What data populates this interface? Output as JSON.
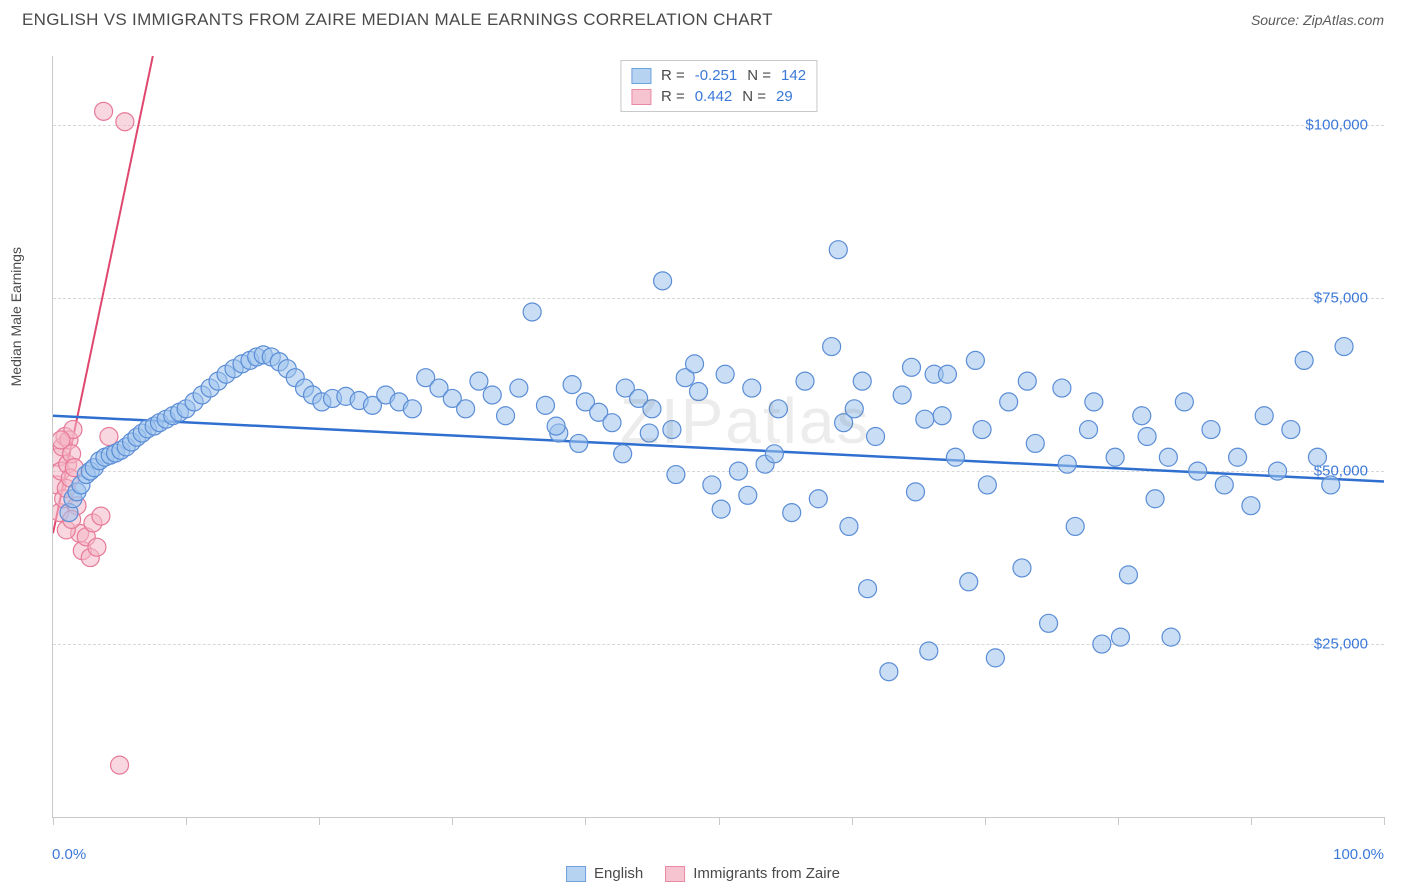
{
  "header": {
    "title": "ENGLISH VS IMMIGRANTS FROM ZAIRE MEDIAN MALE EARNINGS CORRELATION CHART",
    "source": "Source: ZipAtlas.com"
  },
  "watermark": "ZIPatlas",
  "chart": {
    "type": "scatter",
    "y_axis_label": "Median Male Earnings",
    "x_axis": {
      "min_label": "0.0%",
      "max_label": "100.0%",
      "xlim": [
        0,
        100
      ],
      "tick_positions": [
        0,
        10,
        20,
        30,
        40,
        50,
        60,
        70,
        80,
        90,
        100
      ]
    },
    "y_axis": {
      "ylim": [
        0,
        110000
      ],
      "ticks": [
        {
          "value": 25000,
          "label": "$25,000"
        },
        {
          "value": 50000,
          "label": "$50,000"
        },
        {
          "value": 75000,
          "label": "$75,000"
        },
        {
          "value": 100000,
          "label": "$100,000"
        }
      ]
    },
    "grid_color": "#d7d7d7",
    "axis_color": "#c9c9c9",
    "background_color": "#ffffff",
    "legend_top": [
      {
        "swatch_fill": "#b7d3f2",
        "swatch_border": "#6fa1dd",
        "r_label": "R =",
        "r_value": "-0.251",
        "n_label": "N =",
        "n_value": "142"
      },
      {
        "swatch_fill": "#f6c3d0",
        "swatch_border": "#e98aa4",
        "r_label": "R =",
        "r_value": "0.442",
        "n_label": "N =",
        "n_value": "29"
      }
    ],
    "legend_bottom": [
      {
        "swatch_fill": "#b7d3f2",
        "swatch_border": "#6fa1dd",
        "label": "English"
      },
      {
        "swatch_fill": "#f6c3d0",
        "swatch_border": "#e98aa4",
        "label": "Immigrants from Zaire"
      }
    ],
    "marker_radius": 9,
    "marker_stroke_width": 1.2,
    "marker_fill_opacity": 0.55,
    "series": [
      {
        "name": "English",
        "fill": "#9cc2ed",
        "stroke": "#5b8dd6",
        "trend": {
          "x1": 0,
          "y1": 58000,
          "x2": 100,
          "y2": 48500,
          "color": "#2f6fd0",
          "width": 2.5,
          "dash": "none"
        },
        "points": [
          [
            1.2,
            44000
          ],
          [
            1.5,
            46000
          ],
          [
            1.8,
            47000
          ],
          [
            2.1,
            48000
          ],
          [
            2.5,
            49500
          ],
          [
            2.8,
            50000
          ],
          [
            3.1,
            50500
          ],
          [
            3.5,
            51500
          ],
          [
            3.9,
            52000
          ],
          [
            4.3,
            52300
          ],
          [
            4.7,
            52600
          ],
          [
            5.1,
            53000
          ],
          [
            5.5,
            53500
          ],
          [
            5.9,
            54200
          ],
          [
            6.3,
            54900
          ],
          [
            6.7,
            55500
          ],
          [
            7.1,
            56100
          ],
          [
            7.6,
            56500
          ],
          [
            8.0,
            57000
          ],
          [
            8.5,
            57500
          ],
          [
            9.0,
            58000
          ],
          [
            9.5,
            58500
          ],
          [
            10.0,
            59000
          ],
          [
            10.6,
            60000
          ],
          [
            11.2,
            61000
          ],
          [
            11.8,
            62000
          ],
          [
            12.4,
            63000
          ],
          [
            13.0,
            64000
          ],
          [
            13.6,
            64800
          ],
          [
            14.2,
            65500
          ],
          [
            14.8,
            66000
          ],
          [
            15.3,
            66500
          ],
          [
            15.8,
            66800
          ],
          [
            16.4,
            66500
          ],
          [
            17.0,
            65800
          ],
          [
            17.6,
            64800
          ],
          [
            18.2,
            63500
          ],
          [
            18.9,
            62000
          ],
          [
            19.5,
            61000
          ],
          [
            20.2,
            60000
          ],
          [
            21.0,
            60500
          ],
          [
            22.0,
            60800
          ],
          [
            23.0,
            60200
          ],
          [
            24.0,
            59500
          ],
          [
            25.0,
            61000
          ],
          [
            26.0,
            60000
          ],
          [
            27.0,
            59000
          ],
          [
            28.0,
            63500
          ],
          [
            29.0,
            62000
          ],
          [
            30.0,
            60500
          ],
          [
            31.0,
            59000
          ],
          [
            32.0,
            63000
          ],
          [
            33.0,
            61000
          ],
          [
            34.0,
            58000
          ],
          [
            35.0,
            62000
          ],
          [
            36.0,
            73000
          ],
          [
            37.0,
            59500
          ],
          [
            38.0,
            55500
          ],
          [
            39.0,
            62500
          ],
          [
            40.0,
            60000
          ],
          [
            41.0,
            58500
          ],
          [
            42.0,
            57000
          ],
          [
            43.0,
            62000
          ],
          [
            44.0,
            60500
          ],
          [
            45.0,
            59000
          ],
          [
            45.8,
            77500
          ],
          [
            46.5,
            56000
          ],
          [
            47.5,
            63500
          ],
          [
            48.5,
            61500
          ],
          [
            49.5,
            48000
          ],
          [
            50.5,
            64000
          ],
          [
            51.5,
            50000
          ],
          [
            52.5,
            62000
          ],
          [
            53.5,
            51000
          ],
          [
            54.5,
            59000
          ],
          [
            55.5,
            44000
          ],
          [
            56.5,
            63000
          ],
          [
            57.5,
            46000
          ],
          [
            58.5,
            68000
          ],
          [
            59.0,
            82000
          ],
          [
            59.8,
            42000
          ],
          [
            60.8,
            63000
          ],
          [
            61.8,
            55000
          ],
          [
            62.8,
            21000
          ],
          [
            63.8,
            61000
          ],
          [
            64.8,
            47000
          ],
          [
            65.8,
            24000
          ],
          [
            66.8,
            58000
          ],
          [
            67.8,
            52000
          ],
          [
            68.8,
            34000
          ],
          [
            69.8,
            56000
          ],
          [
            70.8,
            23000
          ],
          [
            71.8,
            60000
          ],
          [
            72.8,
            36000
          ],
          [
            73.8,
            54000
          ],
          [
            74.8,
            28000
          ],
          [
            75.8,
            62000
          ],
          [
            76.8,
            42000
          ],
          [
            77.8,
            56000
          ],
          [
            78.8,
            25000
          ],
          [
            79.8,
            52000
          ],
          [
            80.8,
            35000
          ],
          [
            81.8,
            58000
          ],
          [
            82.8,
            46000
          ],
          [
            83.8,
            52000
          ],
          [
            84.0,
            26000
          ],
          [
            85.0,
            60000
          ],
          [
            86.0,
            50000
          ],
          [
            87.0,
            56000
          ],
          [
            88.0,
            48000
          ],
          [
            89.0,
            52000
          ],
          [
            90.0,
            45000
          ],
          [
            91.0,
            58000
          ],
          [
            92.0,
            50000
          ],
          [
            93.0,
            56000
          ],
          [
            94.0,
            66000
          ],
          [
            95.0,
            52000
          ],
          [
            96.0,
            48000
          ],
          [
            97.0,
            68000
          ],
          [
            64.5,
            65000
          ],
          [
            66.2,
            64000
          ],
          [
            61.2,
            33000
          ],
          [
            65.5,
            57500
          ],
          [
            67.2,
            64000
          ],
          [
            69.3,
            66000
          ],
          [
            70.2,
            48000
          ],
          [
            73.2,
            63000
          ],
          [
            76.2,
            51000
          ],
          [
            78.2,
            60000
          ],
          [
            82.2,
            55000
          ],
          [
            59.4,
            57000
          ],
          [
            60.2,
            59000
          ],
          [
            52.2,
            46500
          ],
          [
            54.2,
            52500
          ],
          [
            48.2,
            65500
          ],
          [
            46.8,
            49500
          ],
          [
            50.2,
            44500
          ],
          [
            42.8,
            52500
          ],
          [
            44.8,
            55500
          ],
          [
            39.5,
            54000
          ],
          [
            37.8,
            56500
          ],
          [
            80.2,
            26000
          ]
        ]
      },
      {
        "name": "Immigrants from Zaire",
        "fill": "#f4b6c6",
        "stroke": "#e77a98",
        "trend": {
          "x1": 0,
          "y1": 41000,
          "x2": 7.5,
          "y2": 110000,
          "color": "#e0476f",
          "width": 2,
          "dash": "none"
        },
        "trend_ext": {
          "x1": 7.5,
          "y1": 110000,
          "x2": 14,
          "y2": 170000,
          "color": "#e98aa4",
          "width": 1,
          "dash": "5,4"
        },
        "points": [
          [
            0.3,
            48000
          ],
          [
            0.4,
            52000
          ],
          [
            0.5,
            44000
          ],
          [
            0.6,
            50000
          ],
          [
            0.7,
            53500
          ],
          [
            0.8,
            46000
          ],
          [
            0.9,
            55000
          ],
          [
            1.0,
            47500
          ],
          [
            1.1,
            51000
          ],
          [
            1.2,
            54500
          ],
          [
            1.3,
            49000
          ],
          [
            1.4,
            52500
          ],
          [
            1.5,
            56000
          ],
          [
            1.6,
            50500
          ],
          [
            1.8,
            45000
          ],
          [
            2.0,
            41000
          ],
          [
            2.2,
            38500
          ],
          [
            2.5,
            40500
          ],
          [
            2.8,
            37500
          ],
          [
            3.0,
            42500
          ],
          [
            3.3,
            39000
          ],
          [
            3.6,
            43500
          ],
          [
            1.0,
            41500
          ],
          [
            1.4,
            43000
          ],
          [
            0.6,
            54500
          ],
          [
            3.8,
            102000
          ],
          [
            5.4,
            100500
          ],
          [
            5.0,
            7500
          ],
          [
            4.2,
            55000
          ]
        ]
      }
    ]
  }
}
